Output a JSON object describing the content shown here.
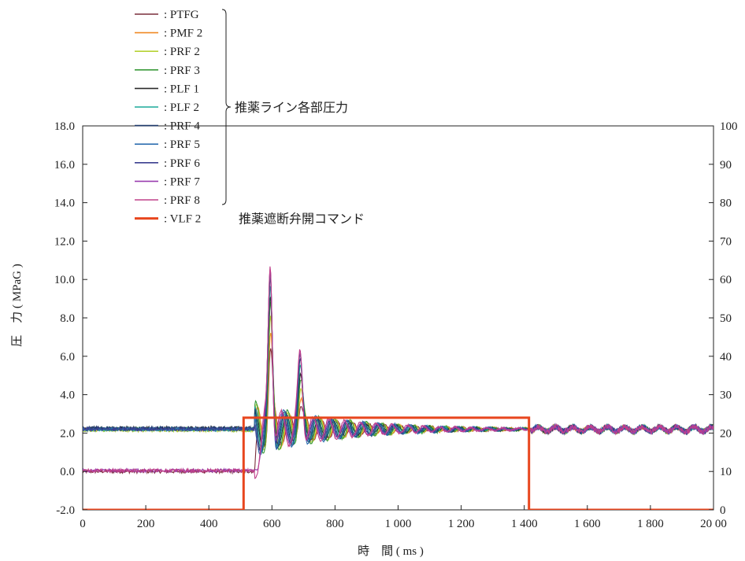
{
  "chart_data": {
    "type": "line",
    "title": "",
    "xlabel": "時　間 ( ms )",
    "ylabel": "圧　力 ( MPaG )",
    "y2label": "",
    "xlim": [
      0,
      2000
    ],
    "ylim": [
      -2.0,
      18.0
    ],
    "y2lim": [
      0,
      100
    ],
    "x_ticks": [
      0,
      200,
      400,
      600,
      800,
      1000,
      1200,
      1400,
      1600,
      1800,
      2000
    ],
    "x_tick_labels": [
      "0",
      "200",
      "400",
      "600",
      "800",
      "1 000",
      "1 200",
      "1 400",
      "1 600",
      "1 800",
      "20 00"
    ],
    "y_ticks": [
      -2.0,
      0.0,
      2.0,
      4.0,
      6.0,
      8.0,
      10.0,
      12.0,
      14.0,
      16.0,
      18.0
    ],
    "y_tick_labels": [
      "-2.0",
      "0.0",
      "2.0",
      "4.0",
      "6.0",
      "8.0",
      "10.0",
      "12.0",
      "14.0",
      "16.0",
      "18.0"
    ],
    "y2_ticks": [
      0,
      10,
      20,
      30,
      40,
      50,
      60,
      70,
      80,
      90,
      100
    ],
    "y2_tick_labels": [
      "0",
      "10",
      "20",
      "30",
      "40",
      "50",
      "60",
      "70",
      "80",
      "90",
      "100"
    ],
    "grid": false,
    "legend_position": "top-left",
    "bracket_label_pressure": "推薬ライン各部圧力",
    "bracket_label_command": "推薬遮断弁開コマンド",
    "series": [
      {
        "name": ": PTFG",
        "color": "#7a2e3c",
        "axis": "left",
        "baseline": 0.0,
        "values": [
          0.0,
          0.0,
          0.0,
          0.0,
          0.0,
          0.0,
          0.0,
          0.0,
          0.0,
          0.0,
          0.0,
          0.0,
          0.0,
          0.0,
          0.0,
          0.0,
          0.0,
          0.0
        ]
      },
      {
        "name": ": PMF 2",
        "color": "#f08a24",
        "axis": "left",
        "baseline": 2.2
      },
      {
        "name": ": PRF 2",
        "color": "#b6d234",
        "axis": "left",
        "baseline": 2.15
      },
      {
        "name": ": PRF 3",
        "color": "#3a9a3a",
        "axis": "left",
        "baseline": 2.2
      },
      {
        "name": ": PLF 1",
        "color": "#2b2b2b",
        "axis": "left",
        "baseline": 2.25
      },
      {
        "name": ": PLF 2",
        "color": "#1aa89a",
        "axis": "left",
        "baseline": 2.2
      },
      {
        "name": ": PRF 4",
        "color": "#1f3a6b",
        "axis": "left",
        "baseline": 2.25
      },
      {
        "name": ": PRF 5",
        "color": "#2f6fb0",
        "axis": "left",
        "baseline": 2.2
      },
      {
        "name": ": PRF 6",
        "color": "#3b3f8f",
        "axis": "left",
        "baseline": 2.2
      },
      {
        "name": ": PRF 7",
        "color": "#9a3fb0",
        "axis": "left",
        "baseline": 0.05
      },
      {
        "name": ": PRF 8",
        "color": "#c0408a",
        "axis": "left",
        "baseline": 0.05
      },
      {
        "name": ": VLF 2",
        "color": "#e8461e",
        "axis": "right",
        "points": [
          [
            0,
            0
          ],
          [
            510,
            0
          ],
          [
            510,
            24
          ],
          [
            1415,
            24
          ],
          [
            1415,
            0
          ],
          [
            2000,
            0
          ]
        ]
      }
    ],
    "pressure_features": {
      "command_open_ms": 510,
      "first_peak": {
        "x": 595,
        "y": 11.5
      },
      "second_peak": {
        "x": 690,
        "y": 6.3
      },
      "oscillation_period_ms": 50,
      "settled_value": 2.2,
      "settled_after_ms": 1420
    }
  }
}
